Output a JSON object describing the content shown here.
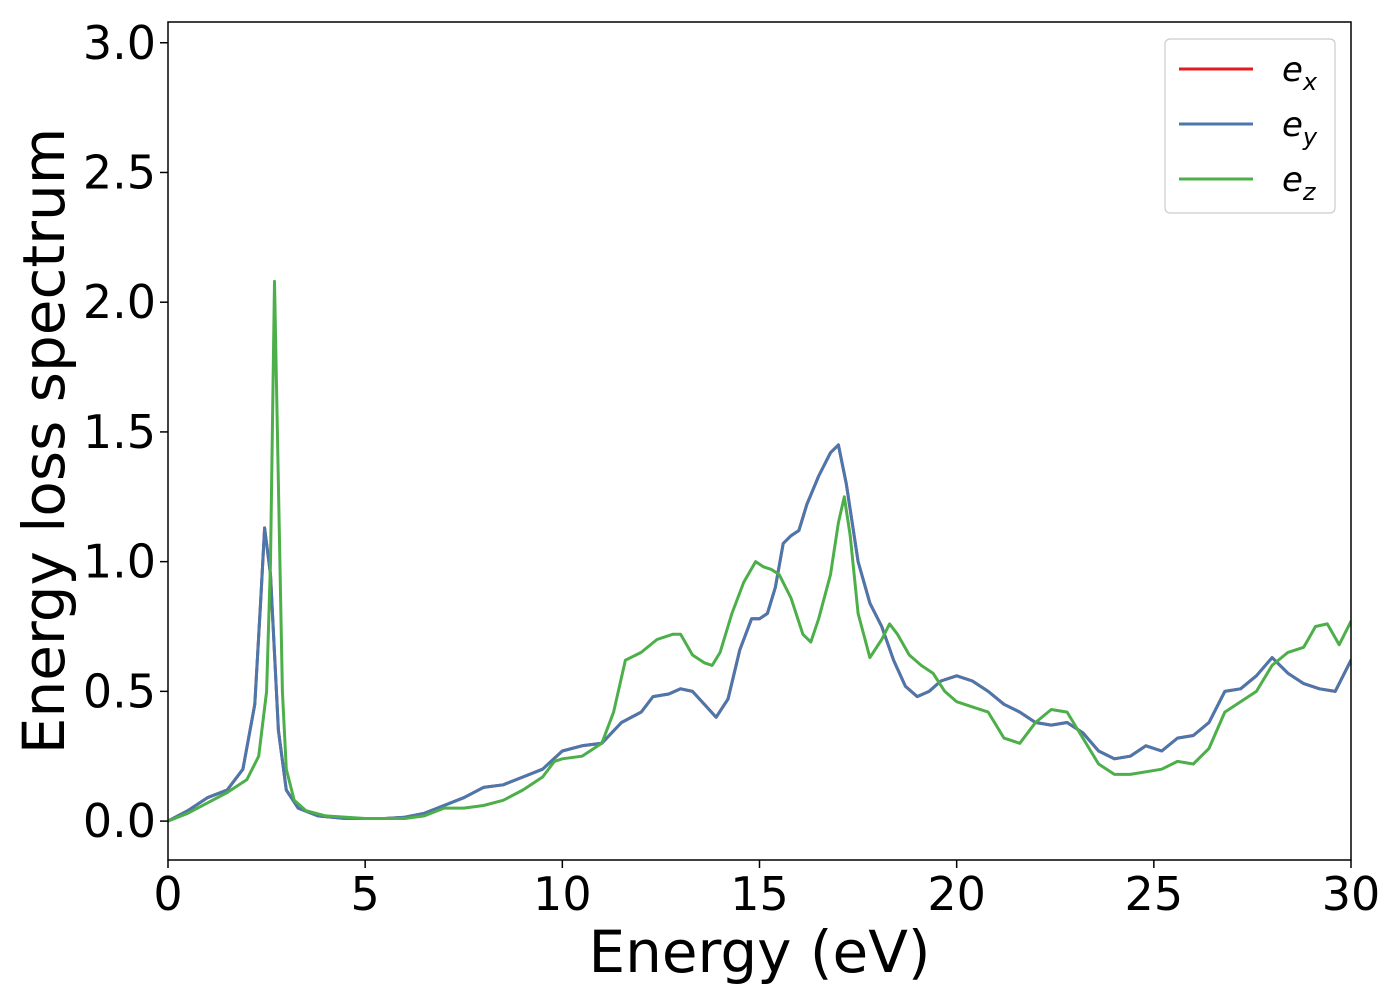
{
  "chart_data": {
    "type": "line",
    "title": "",
    "xlabel": "Energy (eV)",
    "ylabel": "Energy loss spectrum",
    "xlim": [
      0,
      30
    ],
    "ylim": [
      -0.15,
      3.08
    ],
    "xticks": [
      0,
      5,
      10,
      15,
      20,
      25,
      30
    ],
    "xtick_labels": [
      "0",
      "5",
      "10",
      "15",
      "20",
      "25",
      "30"
    ],
    "yticks": [
      0.0,
      0.5,
      1.0,
      1.5,
      2.0,
      2.5,
      3.0
    ],
    "ytick_labels": [
      "0.0",
      "0.5",
      "1.0",
      "1.5",
      "2.0",
      "2.5",
      "3.0"
    ],
    "grid": false,
    "legend_position": "top-right",
    "series": [
      {
        "name": "e",
        "subscript": "x",
        "color": "#e41a1c",
        "x": [
          0,
          0.5,
          1.0,
          1.5,
          1.9,
          2.2,
          2.35,
          2.45,
          2.6,
          2.8,
          3.0,
          3.3,
          3.8,
          4.5,
          5.5,
          6.0,
          6.5,
          7.0,
          7.5,
          8.0,
          8.5,
          9.0,
          9.5,
          10.0,
          10.5,
          11.0,
          11.5,
          12.0,
          12.3,
          12.7,
          13.0,
          13.3,
          13.6,
          13.9,
          14.2,
          14.5,
          14.8,
          15.0,
          15.2,
          15.4,
          15.6,
          15.8,
          16.0,
          16.2,
          16.5,
          16.8,
          17.0,
          17.2,
          17.5,
          17.8,
          18.1,
          18.4,
          18.7,
          19.0,
          19.3,
          19.6,
          20.0,
          20.4,
          20.8,
          21.2,
          21.6,
          22.0,
          22.4,
          22.8,
          23.2,
          23.6,
          24.0,
          24.4,
          24.8,
          25.2,
          25.6,
          26.0,
          26.4,
          26.8,
          27.2,
          27.6,
          28.0,
          28.4,
          28.8,
          29.2,
          29.6,
          30.0
        ],
        "y": [
          0.0,
          0.04,
          0.09,
          0.12,
          0.2,
          0.45,
          0.85,
          1.13,
          0.95,
          0.35,
          0.12,
          0.05,
          0.02,
          0.01,
          0.01,
          0.015,
          0.03,
          0.06,
          0.09,
          0.13,
          0.14,
          0.17,
          0.2,
          0.27,
          0.29,
          0.3,
          0.38,
          0.42,
          0.48,
          0.49,
          0.51,
          0.5,
          0.45,
          0.4,
          0.47,
          0.66,
          0.78,
          0.78,
          0.8,
          0.9,
          1.07,
          1.1,
          1.12,
          1.22,
          1.33,
          1.42,
          1.45,
          1.3,
          1.0,
          0.84,
          0.75,
          0.62,
          0.52,
          0.48,
          0.5,
          0.54,
          0.56,
          0.54,
          0.5,
          0.45,
          0.42,
          0.38,
          0.37,
          0.38,
          0.34,
          0.27,
          0.24,
          0.25,
          0.29,
          0.27,
          0.32,
          0.33,
          0.38,
          0.5,
          0.51,
          0.56,
          0.63,
          0.57,
          0.53,
          0.51,
          0.5,
          0.62
        ]
      },
      {
        "name": "e",
        "subscript": "y",
        "color": "#4a78ad",
        "x": [
          0,
          0.5,
          1.0,
          1.5,
          1.9,
          2.2,
          2.35,
          2.45,
          2.6,
          2.8,
          3.0,
          3.3,
          3.8,
          4.5,
          5.5,
          6.0,
          6.5,
          7.0,
          7.5,
          8.0,
          8.5,
          9.0,
          9.5,
          10.0,
          10.5,
          11.0,
          11.5,
          12.0,
          12.3,
          12.7,
          13.0,
          13.3,
          13.6,
          13.9,
          14.2,
          14.5,
          14.8,
          15.0,
          15.2,
          15.4,
          15.6,
          15.8,
          16.0,
          16.2,
          16.5,
          16.8,
          17.0,
          17.2,
          17.5,
          17.8,
          18.1,
          18.4,
          18.7,
          19.0,
          19.3,
          19.6,
          20.0,
          20.4,
          20.8,
          21.2,
          21.6,
          22.0,
          22.4,
          22.8,
          23.2,
          23.6,
          24.0,
          24.4,
          24.8,
          25.2,
          25.6,
          26.0,
          26.4,
          26.8,
          27.2,
          27.6,
          28.0,
          28.4,
          28.8,
          29.2,
          29.6,
          30.0
        ],
        "y": [
          0.0,
          0.04,
          0.09,
          0.12,
          0.2,
          0.45,
          0.85,
          1.13,
          0.95,
          0.35,
          0.12,
          0.05,
          0.02,
          0.01,
          0.01,
          0.015,
          0.03,
          0.06,
          0.09,
          0.13,
          0.14,
          0.17,
          0.2,
          0.27,
          0.29,
          0.3,
          0.38,
          0.42,
          0.48,
          0.49,
          0.51,
          0.5,
          0.45,
          0.4,
          0.47,
          0.66,
          0.78,
          0.78,
          0.8,
          0.9,
          1.07,
          1.1,
          1.12,
          1.22,
          1.33,
          1.42,
          1.45,
          1.3,
          1.0,
          0.84,
          0.75,
          0.62,
          0.52,
          0.48,
          0.5,
          0.54,
          0.56,
          0.54,
          0.5,
          0.45,
          0.42,
          0.38,
          0.37,
          0.38,
          0.34,
          0.27,
          0.24,
          0.25,
          0.29,
          0.27,
          0.32,
          0.33,
          0.38,
          0.5,
          0.51,
          0.56,
          0.63,
          0.57,
          0.53,
          0.51,
          0.5,
          0.62
        ]
      },
      {
        "name": "e",
        "subscript": "z",
        "color": "#4daf4a",
        "x": [
          0,
          0.5,
          1.0,
          1.5,
          2.0,
          2.3,
          2.5,
          2.6,
          2.7,
          2.8,
          2.9,
          3.0,
          3.2,
          3.5,
          4.0,
          5.0,
          6.0,
          6.5,
          7.0,
          7.5,
          8.0,
          8.5,
          9.0,
          9.5,
          9.8,
          10.0,
          10.5,
          11.0,
          11.3,
          11.6,
          12.0,
          12.4,
          12.8,
          13.0,
          13.3,
          13.6,
          13.8,
          14.0,
          14.3,
          14.6,
          14.9,
          15.1,
          15.3,
          15.5,
          15.8,
          16.1,
          16.3,
          16.5,
          16.8,
          17.0,
          17.15,
          17.3,
          17.5,
          17.8,
          18.1,
          18.3,
          18.5,
          18.8,
          19.1,
          19.4,
          19.7,
          20.0,
          20.4,
          20.8,
          21.2,
          21.6,
          22.0,
          22.4,
          22.8,
          23.2,
          23.6,
          24.0,
          24.4,
          24.8,
          25.2,
          25.6,
          26.0,
          26.4,
          26.8,
          27.2,
          27.6,
          28.0,
          28.4,
          28.8,
          29.1,
          29.4,
          29.7,
          30.0
        ],
        "y": [
          0.0,
          0.03,
          0.07,
          0.11,
          0.16,
          0.25,
          0.5,
          1.0,
          2.08,
          1.3,
          0.5,
          0.2,
          0.08,
          0.04,
          0.02,
          0.01,
          0.01,
          0.02,
          0.05,
          0.05,
          0.06,
          0.08,
          0.12,
          0.17,
          0.23,
          0.24,
          0.25,
          0.3,
          0.42,
          0.62,
          0.65,
          0.7,
          0.72,
          0.72,
          0.64,
          0.61,
          0.6,
          0.65,
          0.8,
          0.92,
          1.0,
          0.98,
          0.97,
          0.95,
          0.86,
          0.72,
          0.69,
          0.78,
          0.95,
          1.15,
          1.25,
          1.1,
          0.8,
          0.63,
          0.7,
          0.76,
          0.72,
          0.64,
          0.6,
          0.57,
          0.5,
          0.46,
          0.44,
          0.42,
          0.32,
          0.3,
          0.38,
          0.43,
          0.42,
          0.32,
          0.22,
          0.18,
          0.18,
          0.19,
          0.2,
          0.23,
          0.22,
          0.28,
          0.42,
          0.46,
          0.5,
          0.6,
          0.65,
          0.67,
          0.75,
          0.76,
          0.68,
          0.77
        ]
      }
    ]
  }
}
